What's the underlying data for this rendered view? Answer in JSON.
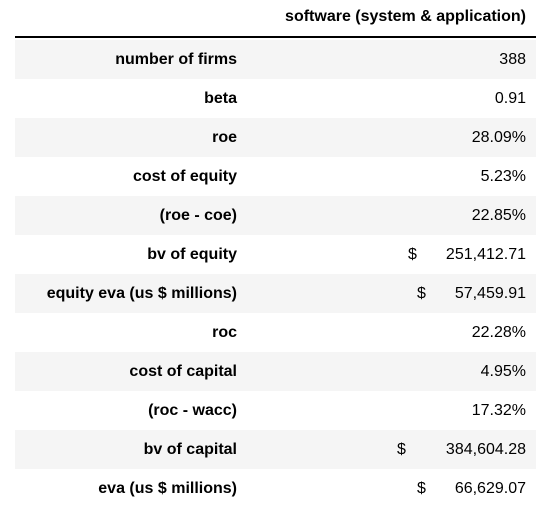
{
  "table": {
    "column_header": "software (system & application)",
    "rows": [
      {
        "label": "number of firms",
        "value": "388",
        "currency": ""
      },
      {
        "label": "beta",
        "value": "0.91",
        "currency": ""
      },
      {
        "label": "roe",
        "value": "28.09%",
        "currency": ""
      },
      {
        "label": "cost of equity",
        "value": "5.23%",
        "currency": ""
      },
      {
        "label": "(roe - coe)",
        "value": "22.85%",
        "currency": ""
      },
      {
        "label": "bv of equity",
        "value": "251,412.71",
        "currency": "$"
      },
      {
        "label": "equity eva (us $ millions)",
        "value": "57,459.91",
        "currency": "$"
      },
      {
        "label": "roc",
        "value": "22.28%",
        "currency": ""
      },
      {
        "label": "cost of capital",
        "value": "4.95%",
        "currency": ""
      },
      {
        "label": "(roc - wacc)",
        "value": "17.32%",
        "currency": ""
      },
      {
        "label": "bv of capital",
        "value": "384,604.28",
        "currency": "$"
      },
      {
        "label": "eva (us $ millions)",
        "value": "66,629.07",
        "currency": "$"
      }
    ]
  }
}
